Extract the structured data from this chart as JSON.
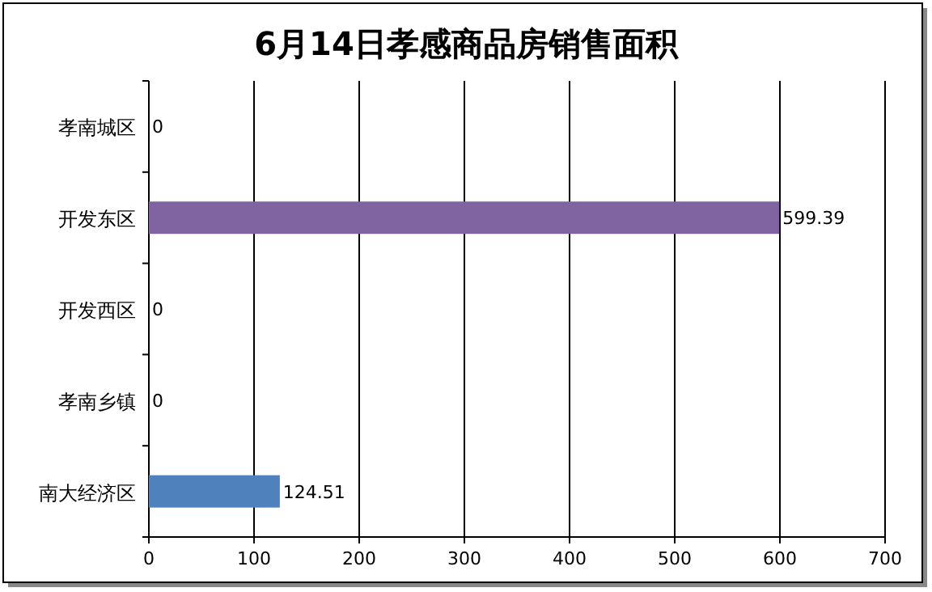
{
  "chart_data": {
    "type": "bar",
    "orientation": "horizontal",
    "title": "6月14日孝感商品房销售面积",
    "categories": [
      "孝南城区",
      "开发东区",
      "开发西区",
      "孝南乡镇",
      "南大经济区"
    ],
    "values": [
      0,
      599.39,
      0,
      0,
      124.51
    ],
    "colors": [
      "#4f81bd",
      "#8064a2",
      "#4f81bd",
      "#4f81bd",
      "#4f81bd"
    ],
    "xlim": [
      0,
      700
    ],
    "xticks": [
      0,
      100,
      200,
      300,
      400,
      500,
      600,
      700
    ],
    "grid": "x",
    "data_labels": true
  }
}
